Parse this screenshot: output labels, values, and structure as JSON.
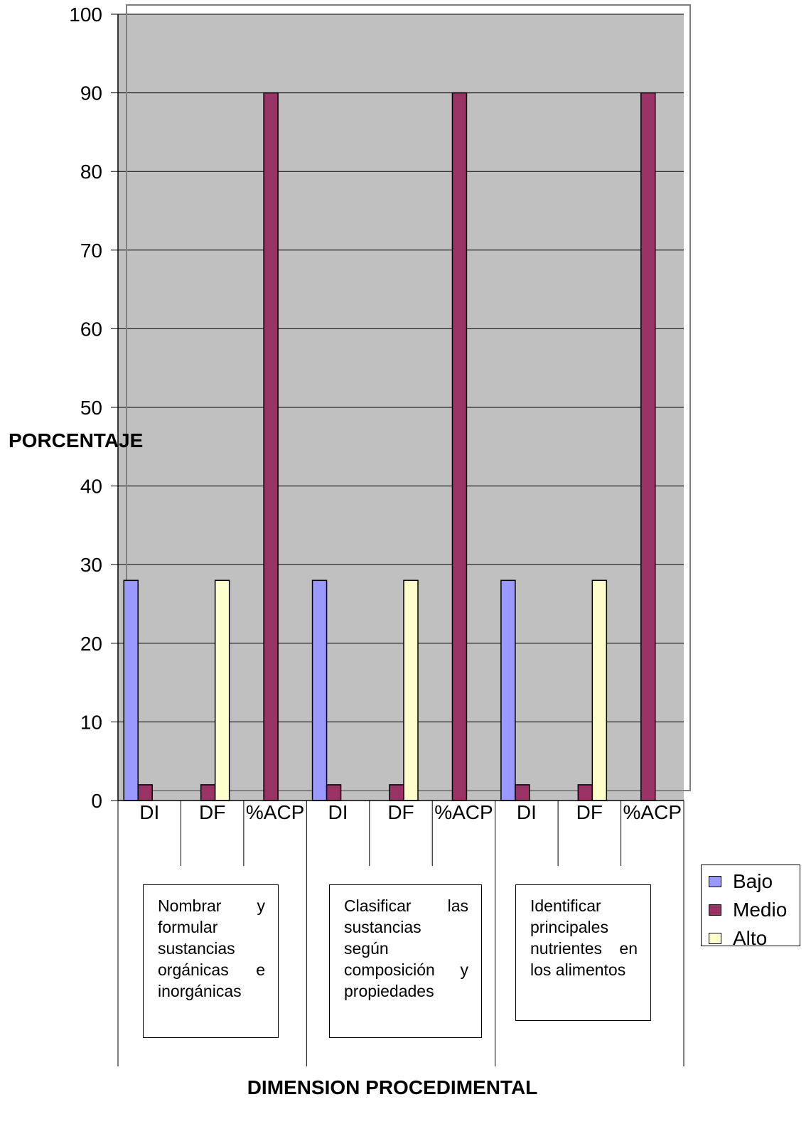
{
  "chart_data": {
    "type": "bar",
    "categories": [
      "DI",
      "DF",
      "%ACP",
      "DI",
      "DF",
      "%ACP",
      "DI",
      "DF",
      "%ACP"
    ],
    "groups": [
      "Nombrar y formular sustancias orgánicas e inorgánicas",
      "Clasificar las sustancias según composición y propiedades",
      "Identificar principales nutrientes en los alimentos"
    ],
    "series": [
      {
        "name": "Bajo",
        "color": "#9999ff",
        "values": [
          28,
          0,
          0,
          28,
          0,
          0,
          28,
          0,
          0
        ]
      },
      {
        "name": "Medio",
        "color": "#993366",
        "values": [
          2,
          2,
          90,
          2,
          2,
          90,
          2,
          2,
          90
        ]
      },
      {
        "name": "Alto",
        "color": "#ffffcc",
        "values": [
          0,
          28,
          0,
          0,
          28,
          0,
          0,
          28,
          0
        ]
      }
    ],
    "ylabel": "PORCENTAJE",
    "xlabel": "DIMENSION PROCEDIMENTAL",
    "ylim": [
      0,
      100
    ],
    "yticks": [
      0,
      10,
      20,
      30,
      40,
      50,
      60,
      70,
      80,
      90,
      100
    ],
    "grid": true,
    "plot_background": "#c0c0c0",
    "legend_position": "right"
  }
}
